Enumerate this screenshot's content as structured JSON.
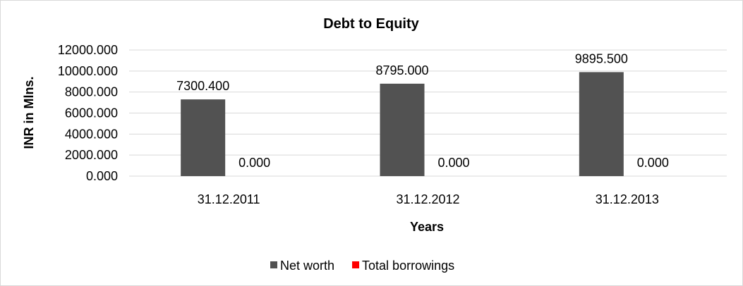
{
  "chart_data": {
    "type": "bar",
    "title": "Debt to Equity",
    "xlabel": "Years",
    "ylabel": "INR in Mlns.",
    "categories": [
      "31.12.2011",
      "31.12.2012",
      "31.12.2013"
    ],
    "series": [
      {
        "name": "Net worth",
        "values": [
          7300.4,
          8795.0,
          9895.5
        ],
        "labels": [
          "7300.400",
          "8795.000",
          "9895.500"
        ],
        "color": "#525252"
      },
      {
        "name": "Total borrowings",
        "values": [
          0,
          0,
          0
        ],
        "labels": [
          "0.000",
          "0.000",
          "0.000"
        ],
        "color": "#ff0000"
      }
    ],
    "yticks": [
      "0.000",
      "2000.000",
      "4000.000",
      "6000.000",
      "8000.000",
      "10000.000",
      "12000.000"
    ],
    "ylim": [
      0,
      12000
    ],
    "grid": true,
    "legend": "bottom"
  }
}
